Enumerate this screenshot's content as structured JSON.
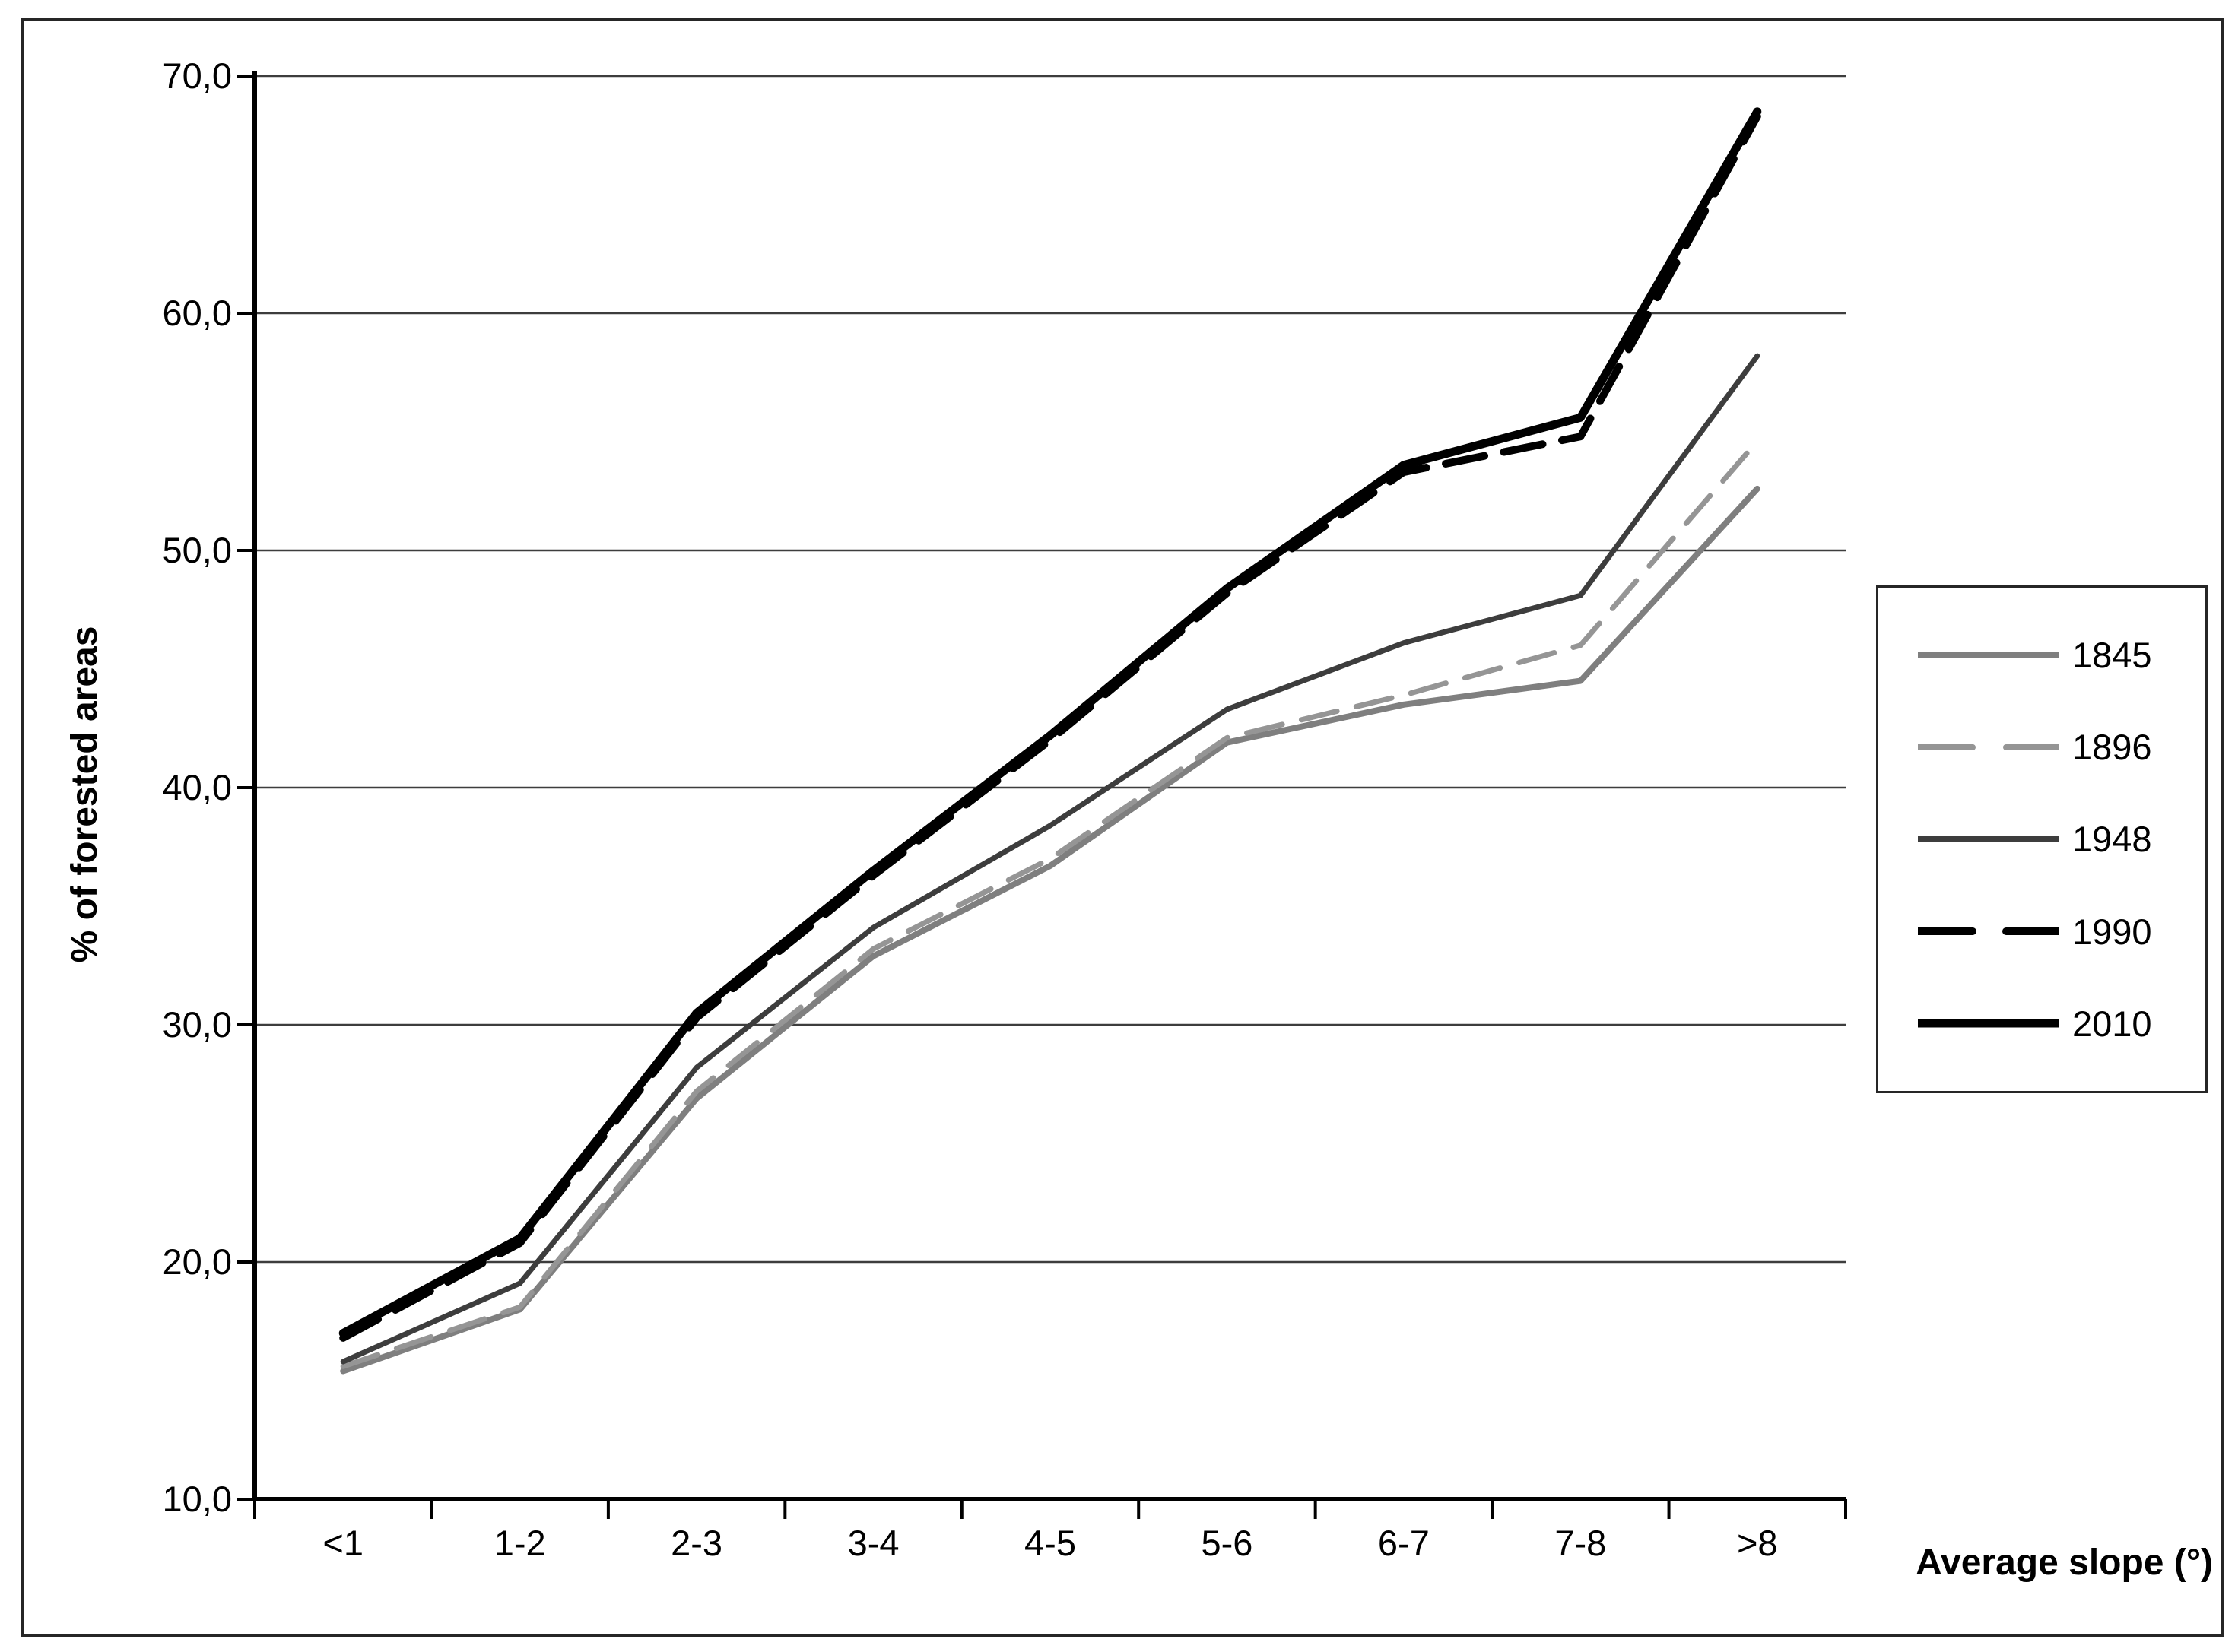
{
  "chart_data": {
    "type": "line",
    "categories": [
      "<1",
      "1-2",
      "2-3",
      "3-4",
      "4-5",
      "5-6",
      "6-7",
      "7-8",
      ">8"
    ],
    "xlabel": "Average slope (°)",
    "ylabel": "% of forested areas",
    "ylim": [
      10,
      70
    ],
    "y_tick_step": 10,
    "y_tick_labels": [
      "10,0",
      "20,0",
      "30,0",
      "40,0",
      "50,0",
      "60,0",
      "70,0"
    ],
    "grid": "horizontal",
    "legend_position": "right",
    "series": [
      {
        "name": "1845",
        "color": "#7f7f7f",
        "dash": null,
        "width": 8,
        "values": [
          15.4,
          18.0,
          26.9,
          32.9,
          36.7,
          41.9,
          43.5,
          44.5,
          52.6
        ]
      },
      {
        "name": "1896",
        "color": "#959595",
        "dash": "48 26",
        "width": 7,
        "values": [
          15.6,
          18.1,
          27.2,
          33.2,
          37.0,
          42.1,
          43.9,
          46.0,
          54.6
        ]
      },
      {
        "name": "1948",
        "color": "#3d3d3d",
        "dash": null,
        "width": 7,
        "values": [
          15.8,
          19.1,
          28.2,
          34.1,
          38.4,
          43.3,
          46.1,
          48.1,
          58.2
        ]
      },
      {
        "name": "1990",
        "color": "#000000",
        "dash": "52 26",
        "width": 10,
        "values": [
          16.8,
          20.8,
          30.3,
          36.3,
          42.0,
          48.2,
          53.3,
          54.8,
          68.3
        ]
      },
      {
        "name": "2010",
        "color": "#000000",
        "dash": null,
        "width": 11,
        "values": [
          17.0,
          21.0,
          30.5,
          36.5,
          42.2,
          48.4,
          53.6,
          55.6,
          68.5
        ]
      }
    ],
    "colors": {
      "grid": "#3d3d3d",
      "axis": "#000000",
      "frame": "#262626"
    }
  }
}
